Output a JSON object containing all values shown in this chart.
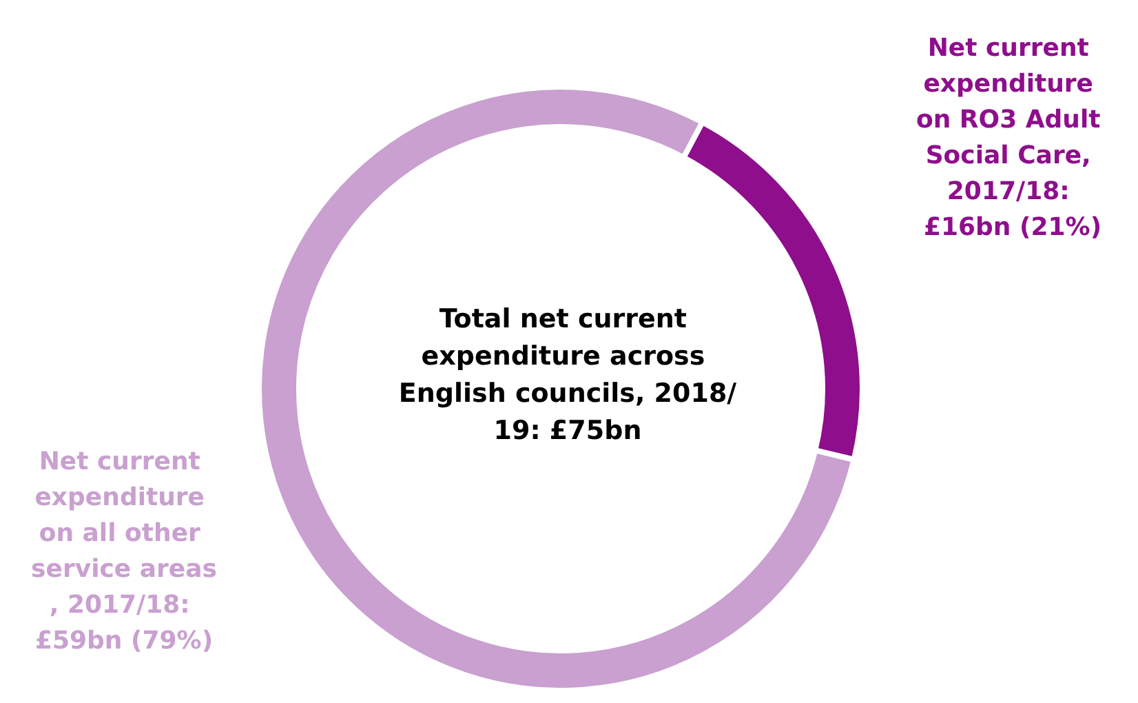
{
  "chart_data": {
    "type": "donut",
    "title": "Total net current expenditure across English councils, 2018/19: £75bn",
    "categories": [
      "Net current expenditure on RO3 Adult Social Care, 2017/18: £16bn (21%)",
      "Net current expenditure on all other service areas, 2017/18: £59bn (79%)"
    ],
    "values": [
      21,
      79
    ],
    "colors": [
      "#8e0e8c",
      "#c9a0d0"
    ],
    "legend": false
  }
}
